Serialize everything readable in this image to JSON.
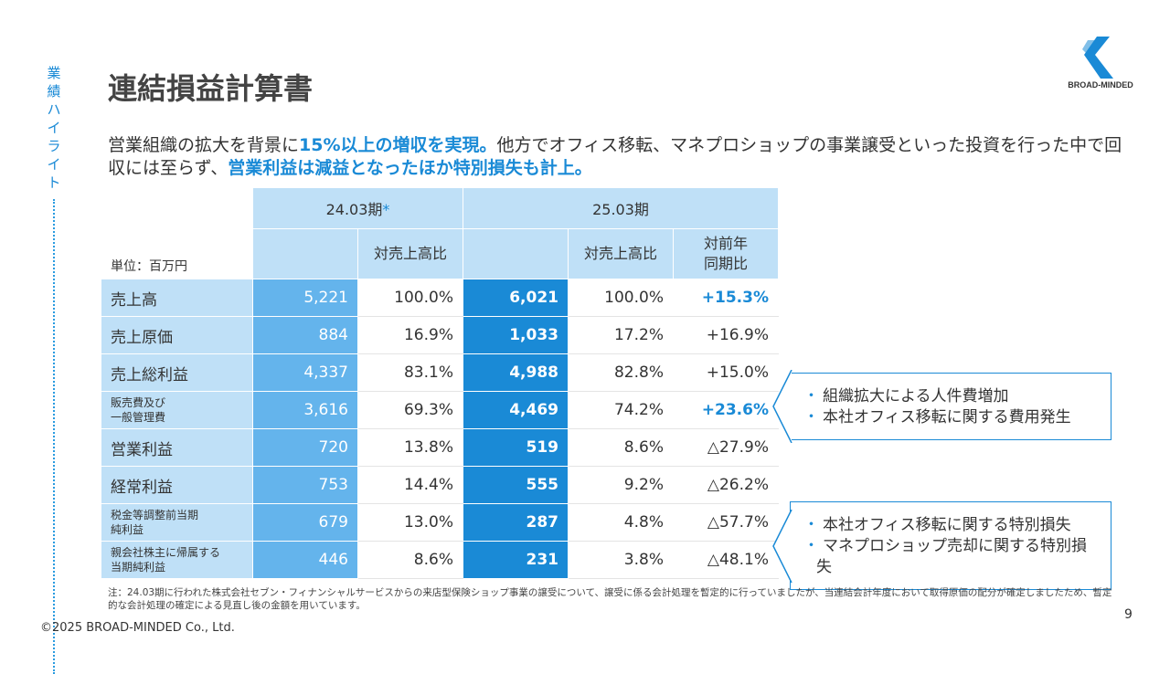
{
  "side_label": [
    "業",
    "績",
    "ハ",
    "イ",
    "ラ",
    "イ",
    "ト"
  ],
  "title": "連結損益計算書",
  "logo_text": "BROAD-MINDED",
  "lead": {
    "p1": "営業組織の拡大を背景に",
    "h1": "15%以上の増収を実現。",
    "p2": "他方でオフィス移転、マネプロショップの事業譲受といった投資を行った中で回収には至らず、",
    "h2": "営業利益は減益となったほか特別損失も計上。"
  },
  "table": {
    "unit": "単位：百万円",
    "period1": "24.03期",
    "period1_mark": "*",
    "period2": "25.03期",
    "sub_ratio": "対売上高比",
    "sub_yoy_1": "対前年",
    "sub_yoy_2": "同期比",
    "rows": [
      {
        "label": "売上高",
        "label2": "",
        "v1": "5,221",
        "r1": "100.0%",
        "v2": "6,021",
        "r2": "100.0%",
        "yoy": "+15.3%"
      },
      {
        "label": "売上原価",
        "label2": "",
        "v1": "884",
        "r1": "16.9%",
        "v2": "1,033",
        "r2": "17.2%",
        "yoy": "+16.9%"
      },
      {
        "label": "売上総利益",
        "label2": "",
        "v1": "4,337",
        "r1": "83.1%",
        "v2": "4,988",
        "r2": "82.8%",
        "yoy": "+15.0%"
      },
      {
        "label": "販売費及び",
        "label2": "一般管理費",
        "v1": "3,616",
        "r1": "69.3%",
        "v2": "4,469",
        "r2": "74.2%",
        "yoy": "+23.6%"
      },
      {
        "label": "営業利益",
        "label2": "",
        "v1": "720",
        "r1": "13.8%",
        "v2": "519",
        "r2": "8.6%",
        "yoy": "△27.9%"
      },
      {
        "label": "経常利益",
        "label2": "",
        "v1": "753",
        "r1": "14.4%",
        "v2": "555",
        "r2": "9.2%",
        "yoy": "△26.2%"
      },
      {
        "label": "税金等調整前当期",
        "label2": "純利益",
        "v1": "679",
        "r1": "13.0%",
        "v2": "287",
        "r2": "4.8%",
        "yoy": "△57.7%"
      },
      {
        "label": "親会社株主に帰属する",
        "label2": "当期純利益",
        "v1": "446",
        "r1": "8.6%",
        "v2": "231",
        "r2": "3.8%",
        "yoy": "△48.1%"
      }
    ]
  },
  "callout1": [
    "組織拡大による人件費増加",
    "本社オフィス移転に関する費用発生"
  ],
  "callout2": [
    "本社オフィス移転に関する特別損失",
    "マネプロショップ売却に関する特別損失"
  ],
  "note": "注：24.03期に行われた株式会社セブン・フィナンシャルサービスからの来店型保険ショップ事業の譲受について、譲受に係る会計処理を暫定的に行っていましたが、当連結会計年度において取得原価の配分が確定しましたため、暫定的な会計処理の確定による見直し後の金額を用いています。",
  "copyright": "©2025 BROAD-MINDED Co., Ltd.",
  "page_number": "9",
  "colors": {
    "accent": "#1a8ad6",
    "light": "#bfe0f7",
    "mid": "#64b4ec"
  }
}
